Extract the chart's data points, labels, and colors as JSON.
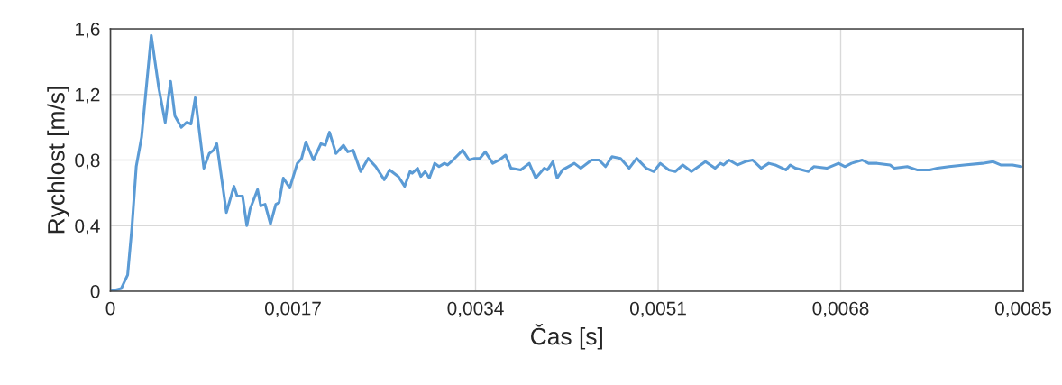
{
  "chart_data": {
    "type": "line",
    "xlabel": "Čas [s]",
    "ylabel": "Rychlost [m/s]",
    "xlim": [
      0,
      0.0085
    ],
    "ylim": [
      0,
      1.6
    ],
    "xticks": [
      0,
      {
        "value": 0.0017,
        "label": "0,0017"
      },
      {
        "value": 0.0034,
        "label": "0,0034"
      },
      {
        "value": 0.0051,
        "label": "0,0051"
      },
      {
        "value": 0.0068,
        "label": "0,0068"
      },
      {
        "value": 0.0085,
        "label": "0,0085"
      }
    ],
    "yticks": [
      0,
      {
        "value": 0.4,
        "label": "0,4"
      },
      {
        "value": 0.8,
        "label": "0,8"
      },
      {
        "value": 1.2,
        "label": "1,2"
      },
      {
        "value": 1.6,
        "label": "1,6"
      }
    ],
    "grid": true,
    "marker": "none",
    "line_style": "solid",
    "series": [
      {
        "color": "#5b9bd5",
        "x": [
          0,
          0.0001,
          0.00016,
          0.0002,
          0.00024,
          0.00029,
          0.00038,
          0.00045,
          0.00051,
          0.00056,
          0.0006,
          0.00066,
          0.00071,
          0.00075,
          0.00079,
          0.00087,
          0.00092,
          0.00096,
          0.00099,
          0.00108,
          0.00115,
          0.00118,
          0.00123,
          0.00127,
          0.0013,
          0.00137,
          0.0014,
          0.00144,
          0.00149,
          0.00154,
          0.00157,
          0.00161,
          0.00167,
          0.00174,
          0.00178,
          0.00182,
          0.00189,
          0.00196,
          0.002,
          0.00204,
          0.0021,
          0.00217,
          0.00221,
          0.00226,
          0.00233,
          0.0024,
          0.00247,
          0.00255,
          0.0026,
          0.00268,
          0.00274,
          0.00279,
          0.00281,
          0.00286,
          0.00289,
          0.00293,
          0.00297,
          0.00302,
          0.00306,
          0.00311,
          0.00314,
          0.00319,
          0.00328,
          0.00334,
          0.00339,
          0.00344,
          0.00349,
          0.00356,
          0.00362,
          0.00368,
          0.00373,
          0.00382,
          0.0039,
          0.00396,
          0.00404,
          0.00407,
          0.00412,
          0.00416,
          0.00421,
          0.00432,
          0.00438,
          0.00448,
          0.00455,
          0.00461,
          0.00467,
          0.00475,
          0.00483,
          0.0049,
          0.00499,
          0.00506,
          0.00512,
          0.0052,
          0.00526,
          0.00533,
          0.00541,
          0.00554,
          0.00563,
          0.00568,
          0.00571,
          0.00576,
          0.00584,
          0.00591,
          0.00598,
          0.00606,
          0.00613,
          0.00619,
          0.00629,
          0.00633,
          0.00638,
          0.0065,
          0.00655,
          0.00667,
          0.00678,
          0.00684,
          0.0069,
          0.007,
          0.00706,
          0.00714,
          0.00726,
          0.0073,
          0.00742,
          0.00751,
          0.00763,
          0.0077,
          0.00781,
          0.00795,
          0.00812,
          0.00822,
          0.00829,
          0.0084,
          0.00848
        ],
        "values": [
          0,
          0.016,
          0.1,
          0.39,
          0.76,
          0.94,
          1.56,
          1.24,
          1.03,
          1.28,
          1.07,
          1.0,
          1.03,
          1.02,
          1.18,
          0.75,
          0.84,
          0.86,
          0.9,
          0.48,
          0.64,
          0.58,
          0.58,
          0.4,
          0.5,
          0.62,
          0.52,
          0.53,
          0.41,
          0.53,
          0.54,
          0.69,
          0.63,
          0.78,
          0.81,
          0.91,
          0.8,
          0.9,
          0.89,
          0.97,
          0.84,
          0.89,
          0.85,
          0.86,
          0.73,
          0.81,
          0.76,
          0.68,
          0.74,
          0.7,
          0.64,
          0.73,
          0.72,
          0.75,
          0.7,
          0.73,
          0.69,
          0.78,
          0.76,
          0.78,
          0.77,
          0.8,
          0.86,
          0.8,
          0.81,
          0.81,
          0.85,
          0.78,
          0.8,
          0.83,
          0.75,
          0.74,
          0.78,
          0.69,
          0.75,
          0.74,
          0.79,
          0.69,
          0.74,
          0.78,
          0.75,
          0.8,
          0.8,
          0.76,
          0.82,
          0.81,
          0.75,
          0.81,
          0.75,
          0.73,
          0.78,
          0.74,
          0.73,
          0.77,
          0.73,
          0.79,
          0.75,
          0.78,
          0.77,
          0.8,
          0.77,
          0.79,
          0.8,
          0.75,
          0.78,
          0.77,
          0.74,
          0.77,
          0.75,
          0.73,
          0.76,
          0.75,
          0.78,
          0.76,
          0.78,
          0.8,
          0.78,
          0.78,
          0.77,
          0.75,
          0.76,
          0.74,
          0.74,
          0.75,
          0.76,
          0.77,
          0.78,
          0.79,
          0.77,
          0.77,
          0.76
        ]
      }
    ]
  }
}
